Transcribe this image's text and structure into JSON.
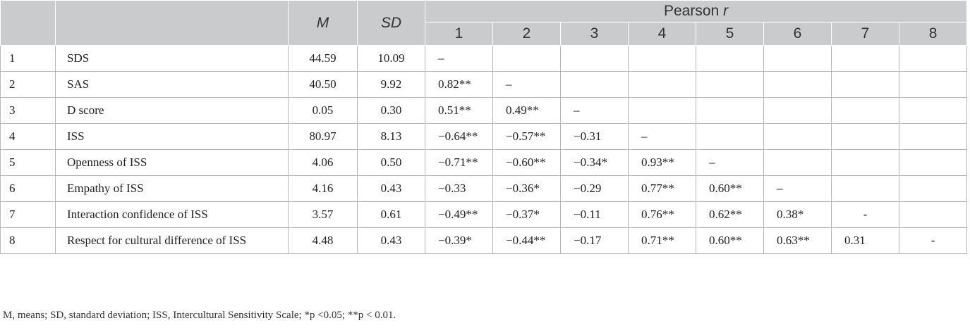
{
  "table": {
    "headers": {
      "M": "M",
      "SD": "SD",
      "pearson": "Pearson",
      "pearson_r": "r",
      "cols": [
        "1",
        "2",
        "3",
        "4",
        "5",
        "6",
        "7",
        "8"
      ]
    },
    "rows": [
      {
        "idx": "1",
        "name": "SDS",
        "M": "44.59",
        "SD": "10.09",
        "r": [
          "–",
          "",
          "",
          "",
          "",
          "",
          "",
          ""
        ]
      },
      {
        "idx": "2",
        "name": "SAS",
        "M": "40.50",
        "SD": "9.92",
        "r": [
          "0.82**",
          "–",
          "",
          "",
          "",
          "",
          "",
          ""
        ]
      },
      {
        "idx": "3",
        "name": "D score",
        "M": "0.05",
        "SD": "0.30",
        "r": [
          "0.51**",
          "0.49**",
          "–",
          "",
          "",
          "",
          "",
          ""
        ]
      },
      {
        "idx": "4",
        "name": "ISS",
        "M": "80.97",
        "SD": "8.13",
        "r": [
          "−0.64**",
          "−0.57**",
          "−0.31",
          "–",
          "",
          "",
          "",
          ""
        ]
      },
      {
        "idx": "5",
        "name": "Openness of ISS",
        "M": "4.06",
        "SD": "0.50",
        "r": [
          "−0.71**",
          "−0.60**",
          "−0.34*",
          "0.93**",
          "–",
          "",
          "",
          ""
        ]
      },
      {
        "idx": "6",
        "name": "Empathy of ISS",
        "M": "4.16",
        "SD": "0.43",
        "r": [
          "−0.33",
          "−0.36*",
          "−0.29",
          "0.77**",
          "0.60**",
          "–",
          "",
          ""
        ]
      },
      {
        "idx": "7",
        "name": "Interaction confidence of ISS",
        "M": "3.57",
        "SD": "0.61",
        "r": [
          "−0.49**",
          "−0.37*",
          "−0.11",
          "0.76**",
          "0.62**",
          "0.38*",
          "-",
          ""
        ]
      },
      {
        "idx": "8",
        "name": "Respect for cultural difference of ISS",
        "M": "4.48",
        "SD": "0.43",
        "r": [
          "−0.39*",
          "−0.44**",
          "−0.17",
          "0.71**",
          "0.60**",
          "0.63**",
          "0.31",
          "-"
        ]
      }
    ]
  },
  "note": "M, means; SD, standard deviation; ISS, Intercultural Sensitivity Scale; *p <0.05; **p < 0.01."
}
